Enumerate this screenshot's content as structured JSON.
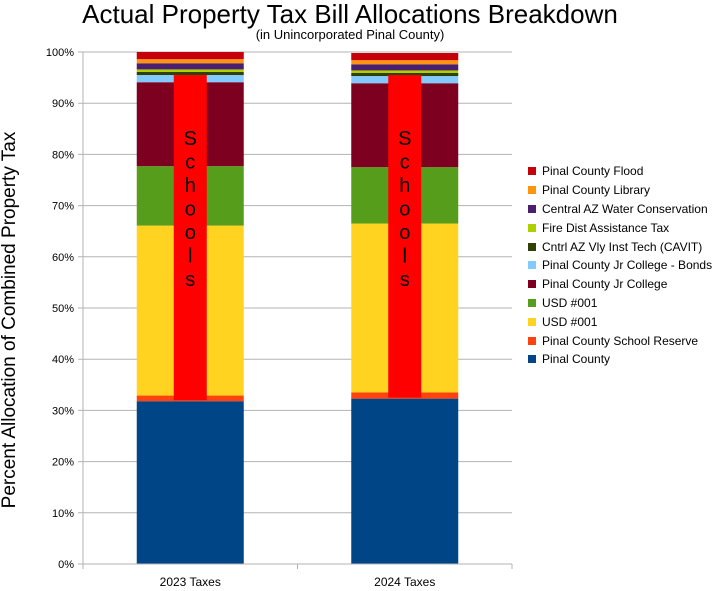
{
  "chart_data": {
    "type": "bar",
    "stacked": true,
    "title": "Actual Property Tax Bill Allocations Breakdown",
    "subtitle": "(in Unincorporated Pinal County)",
    "ylabel": "Percent Allocation of Combined Property Tax",
    "xlabel": "",
    "categories": [
      "2023 Taxes",
      "2024 Taxes"
    ],
    "ylim": [
      0,
      100
    ],
    "yticks": [
      "0%",
      "10%",
      "20%",
      "30%",
      "40%",
      "50%",
      "60%",
      "70%",
      "80%",
      "90%",
      "100%"
    ],
    "grid": true,
    "legend_position": "right",
    "series": [
      {
        "name": "Pinal County",
        "color": "#004586",
        "values": [
          31.8,
          32.3
        ]
      },
      {
        "name": "Pinal County School Reserve",
        "color": "#ff420e",
        "values": [
          1.1,
          1.2
        ]
      },
      {
        "name": "USD #001",
        "color": "#ffd320",
        "values": [
          33.2,
          33.0
        ]
      },
      {
        "name": "USD #001",
        "color": "#579d1c",
        "values": [
          11.6,
          11.0
        ]
      },
      {
        "name": "Pinal County Jr College",
        "color": "#7e0021",
        "values": [
          16.4,
          16.4
        ]
      },
      {
        "name": "Pinal County Jr College - Bonds",
        "color": "#83caff",
        "values": [
          1.4,
          1.4
        ]
      },
      {
        "name": "Cntrl AZ Vly Inst Tech (CAVIT)",
        "color": "#314004",
        "values": [
          0.6,
          0.6
        ]
      },
      {
        "name": "Fire Dist Assistance Tax",
        "color": "#aecf00",
        "values": [
          0.5,
          0.5
        ]
      },
      {
        "name": "Central AZ Water Conservation",
        "color": "#4b1f6f",
        "values": [
          1.2,
          1.2
        ]
      },
      {
        "name": "Pinal County Library",
        "color": "#ff950e",
        "values": [
          0.8,
          0.8
        ]
      },
      {
        "name": "Pinal County Flood",
        "color": "#c5000b",
        "values": [
          1.4,
          1.4
        ]
      }
    ],
    "annotations": [
      {
        "text": "Schools",
        "color": "#ff0000",
        "range": [
          [
            32,
            95.5
          ],
          [
            32.5,
            95.5
          ]
        ]
      }
    ]
  }
}
